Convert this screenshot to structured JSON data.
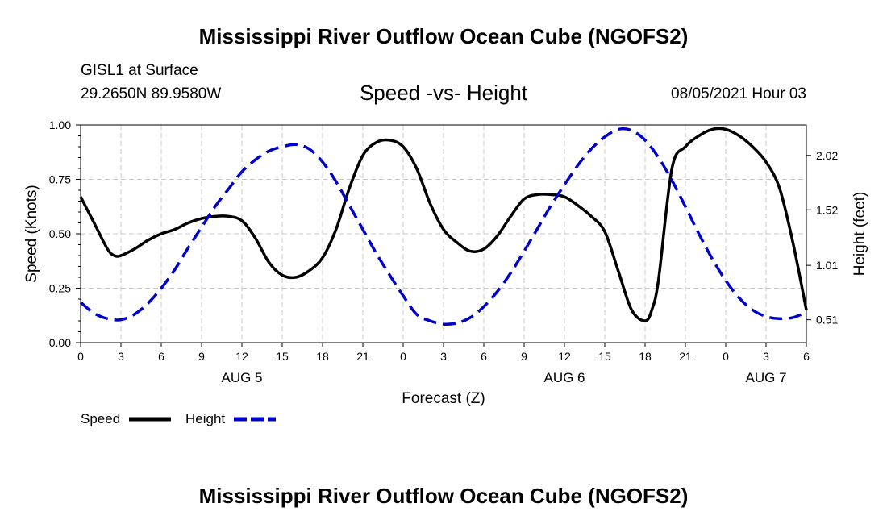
{
  "header": {
    "title": "Mississippi River Outflow Ocean Cube (NGOFS2)",
    "station": "GISL1 at Surface",
    "coords": "29.2650N  89.9580W",
    "subtitle": "Speed -vs- Height",
    "datetime": "08/05/2021 Hour 03"
  },
  "footer": {
    "title": "Mississippi River Outflow Ocean Cube (NGOFS2)"
  },
  "chart_data": {
    "type": "line",
    "xlabel": "Forecast (Z)",
    "ylabel_left": "Speed (Knots)",
    "ylabel_right": "Height (feet)",
    "x_range": [
      0,
      54
    ],
    "y_left_range": [
      0,
      1
    ],
    "y_right_range": [
      0.3,
      2.3
    ],
    "x_ticks": [
      {
        "x": 0,
        "label": "0"
      },
      {
        "x": 3,
        "label": "3"
      },
      {
        "x": 6,
        "label": "6"
      },
      {
        "x": 9,
        "label": "9"
      },
      {
        "x": 12,
        "label": "12"
      },
      {
        "x": 15,
        "label": "15"
      },
      {
        "x": 18,
        "label": "18"
      },
      {
        "x": 21,
        "label": "21"
      },
      {
        "x": 24,
        "label": "0"
      },
      {
        "x": 27,
        "label": "3"
      },
      {
        "x": 30,
        "label": "6"
      },
      {
        "x": 33,
        "label": "9"
      },
      {
        "x": 36,
        "label": "12"
      },
      {
        "x": 39,
        "label": "15"
      },
      {
        "x": 42,
        "label": "18"
      },
      {
        "x": 45,
        "label": "21"
      },
      {
        "x": 48,
        "label": "0"
      },
      {
        "x": 51,
        "label": "3"
      },
      {
        "x": 54,
        "label": "6"
      }
    ],
    "date_labels": [
      {
        "x": 12,
        "label": "AUG 5"
      },
      {
        "x": 36,
        "label": "AUG 6"
      },
      {
        "x": 51,
        "label": "AUG 7"
      }
    ],
    "y_left_ticks": [
      {
        "y": 0.0,
        "label": "0.00"
      },
      {
        "y": 0.25,
        "label": "0.25"
      },
      {
        "y": 0.5,
        "label": "0.50"
      },
      {
        "y": 0.75,
        "label": "0.75"
      },
      {
        "y": 1.0,
        "label": "1.00"
      }
    ],
    "y_right_ticks": [
      {
        "y": 0.51,
        "label": "0.51"
      },
      {
        "y": 1.01,
        "label": "1.01"
      },
      {
        "y": 1.52,
        "label": "1.52"
      },
      {
        "y": 2.02,
        "label": "2.02"
      }
    ],
    "series": [
      {
        "name": "Speed",
        "axis": "left",
        "color": "#000000",
        "dash": "solid",
        "points": [
          [
            0,
            0.67
          ],
          [
            1,
            0.55
          ],
          [
            2,
            0.43
          ],
          [
            2.5,
            0.4
          ],
          [
            3,
            0.4
          ],
          [
            4,
            0.43
          ],
          [
            5,
            0.47
          ],
          [
            6,
            0.5
          ],
          [
            7,
            0.52
          ],
          [
            8,
            0.55
          ],
          [
            9,
            0.57
          ],
          [
            10,
            0.58
          ],
          [
            11,
            0.58
          ],
          [
            12,
            0.56
          ],
          [
            13,
            0.48
          ],
          [
            14,
            0.37
          ],
          [
            15,
            0.31
          ],
          [
            16,
            0.3
          ],
          [
            17,
            0.33
          ],
          [
            18,
            0.39
          ],
          [
            19,
            0.52
          ],
          [
            20,
            0.71
          ],
          [
            21,
            0.86
          ],
          [
            22,
            0.92
          ],
          [
            23,
            0.93
          ],
          [
            24,
            0.9
          ],
          [
            25,
            0.8
          ],
          [
            26,
            0.64
          ],
          [
            27,
            0.52
          ],
          [
            28,
            0.46
          ],
          [
            29,
            0.42
          ],
          [
            30,
            0.43
          ],
          [
            31,
            0.49
          ],
          [
            32,
            0.58
          ],
          [
            33,
            0.66
          ],
          [
            34,
            0.68
          ],
          [
            35,
            0.68
          ],
          [
            36,
            0.67
          ],
          [
            37,
            0.63
          ],
          [
            38,
            0.58
          ],
          [
            39,
            0.51
          ],
          [
            40,
            0.33
          ],
          [
            41,
            0.15
          ],
          [
            42,
            0.1
          ],
          [
            42.5,
            0.15
          ],
          [
            43,
            0.29
          ],
          [
            44,
            0.8
          ],
          [
            45,
            0.9
          ],
          [
            46,
            0.95
          ],
          [
            47,
            0.98
          ],
          [
            48,
            0.98
          ],
          [
            49,
            0.95
          ],
          [
            50,
            0.9
          ],
          [
            51,
            0.83
          ],
          [
            52,
            0.71
          ],
          [
            53,
            0.46
          ],
          [
            54,
            0.15
          ]
        ]
      },
      {
        "name": "Height",
        "axis": "right",
        "color": "#0000cc",
        "dash": "dashed",
        "points": [
          [
            0,
            0.67
          ],
          [
            1,
            0.57
          ],
          [
            2,
            0.52
          ],
          [
            3,
            0.51
          ],
          [
            4,
            0.56
          ],
          [
            5,
            0.66
          ],
          [
            6,
            0.8
          ],
          [
            7,
            0.97
          ],
          [
            8,
            1.17
          ],
          [
            9,
            1.36
          ],
          [
            10,
            1.55
          ],
          [
            11,
            1.71
          ],
          [
            12,
            1.87
          ],
          [
            13,
            1.98
          ],
          [
            14,
            2.06
          ],
          [
            15,
            2.1
          ],
          [
            16,
            2.12
          ],
          [
            17,
            2.08
          ],
          [
            18,
            1.96
          ],
          [
            19,
            1.78
          ],
          [
            20,
            1.56
          ],
          [
            21,
            1.34
          ],
          [
            22,
            1.12
          ],
          [
            23,
            0.92
          ],
          [
            24,
            0.73
          ],
          [
            25,
            0.56
          ],
          [
            26,
            0.5
          ],
          [
            27,
            0.47
          ],
          [
            28,
            0.48
          ],
          [
            29,
            0.53
          ],
          [
            30,
            0.63
          ],
          [
            31,
            0.77
          ],
          [
            32,
            0.94
          ],
          [
            33,
            1.14
          ],
          [
            34,
            1.35
          ],
          [
            35,
            1.56
          ],
          [
            36,
            1.75
          ],
          [
            37,
            1.93
          ],
          [
            38,
            2.08
          ],
          [
            39,
            2.19
          ],
          [
            40,
            2.26
          ],
          [
            41,
            2.25
          ],
          [
            42,
            2.16
          ],
          [
            43,
            2.0
          ],
          [
            44,
            1.79
          ],
          [
            45,
            1.55
          ],
          [
            46,
            1.3
          ],
          [
            47,
            1.07
          ],
          [
            48,
            0.87
          ],
          [
            49,
            0.71
          ],
          [
            50,
            0.6
          ],
          [
            51,
            0.54
          ],
          [
            52,
            0.52
          ],
          [
            53,
            0.53
          ],
          [
            54,
            0.58
          ]
        ]
      }
    ],
    "legend": [
      {
        "label": "Speed",
        "color": "#000000",
        "dash": "solid"
      },
      {
        "label": "Height",
        "color": "#0000cc",
        "dash": "dashed"
      }
    ],
    "legend_position": "bottom-left",
    "grid": true
  }
}
